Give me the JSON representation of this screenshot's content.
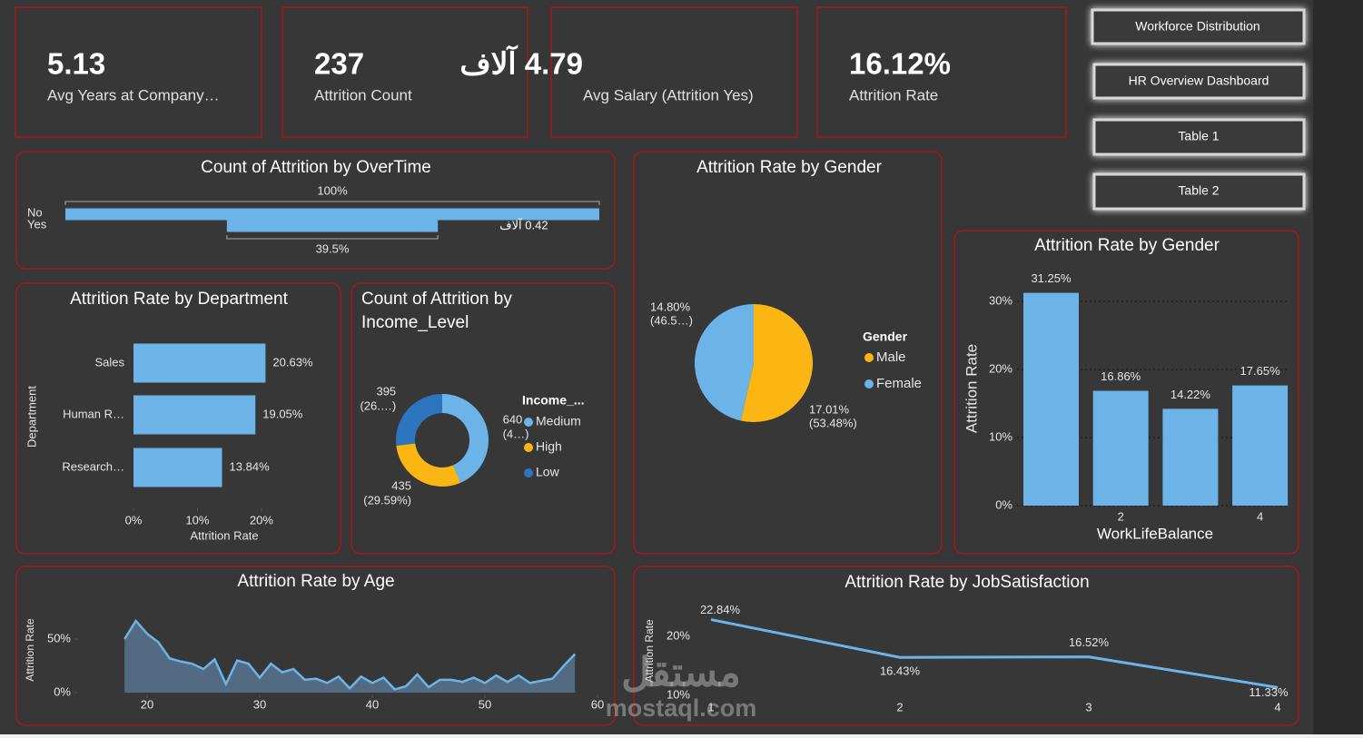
{
  "kpi_cards": [
    {
      "value": "5.13",
      "label": "Avg Years at Company…"
    },
    {
      "value": "237",
      "label": "Attrition Count"
    },
    {
      "value": "4.79 آلاف",
      "label": "Avg Salary (Attrition Yes)"
    },
    {
      "value": "16.12%",
      "label": "Attrition Rate"
    }
  ],
  "buttons": [
    "Workforce Distribution",
    "HR Overview Dashboard",
    "Table 1",
    "Table 2"
  ],
  "watermark": {
    "arabic": "مستقل",
    "latin": "mostaql.com"
  },
  "chart_data": [
    {
      "type": "funnel",
      "title": "Count of Attrition by OverTime",
      "categories": [
        "No",
        "Yes"
      ],
      "values": [
        1063,
        420
      ],
      "value_labels": [
        null,
        "0.42 آلاف"
      ],
      "percent_of_first": [
        {
          "value": 100,
          "label": "100%"
        },
        {
          "value": 39.5,
          "label": "39.5%"
        }
      ],
      "color": "#6cb4e8"
    },
    {
      "type": "hbar",
      "title": "Attrition Rate by Department",
      "categories": [
        "Sales",
        "Human R…",
        "Research…"
      ],
      "values": [
        20.63,
        19.05,
        13.84
      ],
      "value_labels": [
        "20.63%",
        "19.05%",
        "13.84%"
      ],
      "xlim": [
        0,
        21
      ],
      "xticks": [
        {
          "value": 0,
          "label": "0%"
        },
        {
          "value": 10,
          "label": "10%"
        },
        {
          "value": 20,
          "label": "20%"
        }
      ],
      "x_label": "Attrition Rate",
      "y_label": "Department",
      "color": "#6cb4e8"
    },
    {
      "type": "donut",
      "title": "Count of Attrition by Income_Level",
      "legend_title": "Income_...",
      "categories": [
        "Medium",
        "High",
        "Low"
      ],
      "values": [
        640,
        435,
        395
      ],
      "percent_labels": [
        "(4…)",
        "(29.59%)",
        "(26.…)"
      ],
      "colors": [
        "#6cb4e8",
        "#fbb613",
        "#2e75c0"
      ]
    },
    {
      "type": "pie",
      "title": "Attrition Rate by Gender",
      "legend_title": "Gender",
      "categories": [
        "Male",
        "Female"
      ],
      "values": [
        17.01,
        14.8
      ],
      "value_labels": [
        "17.01%",
        "14.80%"
      ],
      "shares": [
        53.48,
        46.52
      ],
      "share_labels": [
        "(53.48%)",
        "(46.5…)"
      ],
      "colors": [
        "#fbb613",
        "#6cb4e8"
      ]
    },
    {
      "type": "bar",
      "title": "Attrition Rate by Gender",
      "categories": [
        null,
        "2",
        null,
        "4"
      ],
      "values": [
        31.25,
        16.86,
        14.22,
        17.65
      ],
      "value_labels": [
        "31.25%",
        "16.86%",
        "14.22%",
        "17.65%"
      ],
      "ylim": [
        0,
        34
      ],
      "yticks": [
        {
          "value": 0,
          "label": "0%"
        },
        {
          "value": 10,
          "label": "10%"
        },
        {
          "value": 20,
          "label": "20%"
        },
        {
          "value": 30,
          "label": "30%"
        }
      ],
      "x_label": "WorkLifeBalance",
      "y_label": "Attrition Rate",
      "grid": true,
      "color": "#6cb4e8"
    },
    {
      "type": "area",
      "title": "Attrition Rate by Age",
      "x": [
        18,
        19,
        20,
        21,
        22,
        23,
        24,
        25,
        26,
        27,
        28,
        29,
        30,
        31,
        32,
        33,
        34,
        35,
        36,
        37,
        38,
        39,
        40,
        41,
        42,
        43,
        44,
        45,
        46,
        47,
        48,
        49,
        50,
        51,
        52,
        53,
        54,
        55,
        56,
        57,
        58
      ],
      "values": [
        50,
        67,
        55,
        47,
        32,
        29,
        27,
        22,
        31,
        8,
        30,
        27,
        14,
        27,
        19,
        22,
        12,
        13,
        9,
        15,
        4,
        15,
        9,
        14,
        3,
        6,
        17,
        5,
        12,
        12,
        10,
        14,
        9,
        16,
        10,
        16,
        9,
        11,
        13,
        25,
        36
      ],
      "xlim": [
        18,
        60
      ],
      "xticks": [
        20,
        30,
        40,
        50,
        60
      ],
      "ylim": [
        0,
        70
      ],
      "yticks": [
        {
          "value": 0,
          "label": "0%"
        },
        {
          "value": 50,
          "label": "50%"
        }
      ],
      "y_label": "Attrition Rate",
      "color": "#6cb4e8"
    },
    {
      "type": "line",
      "title": "Attrition Rate by JobSatisfaction",
      "x": [
        1,
        2,
        3,
        4
      ],
      "values": [
        22.84,
        16.43,
        16.52,
        11.33
      ],
      "value_labels": [
        "22.84%",
        "16.43%",
        "16.52%",
        "11.33%"
      ],
      "xlim": [
        1,
        4
      ],
      "xticks": [
        1,
        2,
        3,
        4
      ],
      "ylim": [
        10,
        24
      ],
      "yticks": [
        {
          "value": 10,
          "label": "10%"
        },
        {
          "value": 20,
          "label": "20%"
        }
      ],
      "y_label": "Attrition Rate",
      "color": "#6cb4e8"
    }
  ]
}
